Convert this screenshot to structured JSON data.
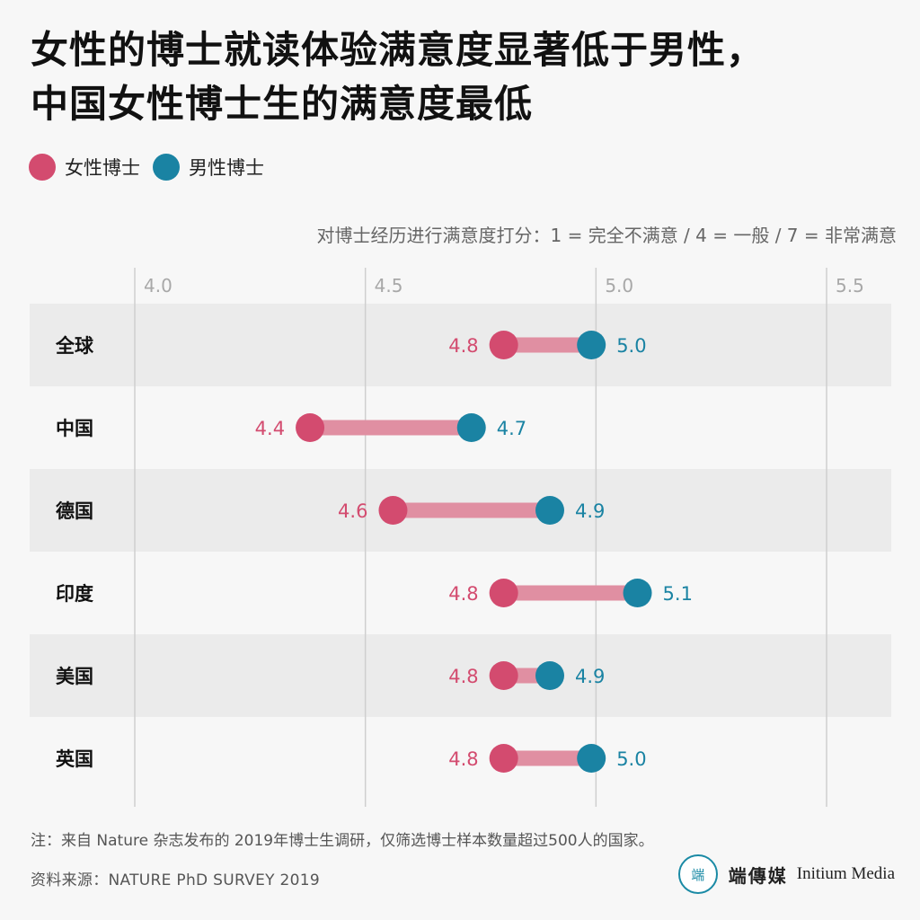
{
  "title_lines": [
    "女性的博士就读体验满意度显著低于男性，",
    "中国女性博士生的满意度最低"
  ],
  "legend": [
    {
      "label": "女性博士",
      "color": "#d34b6f"
    },
    {
      "label": "男性博士",
      "color": "#1a83a3"
    }
  ],
  "note": "注：来自 Nature 杂志发布的 2019年博士生调研，仅筛选博士样本数量超过500人的国家。",
  "source": "资料来源：NATURE PhD SURVEY 2019",
  "brand": {
    "logo_text": "端",
    "cn": "端傳媒",
    "en": "Initium Media"
  },
  "chart_data": {
    "type": "dumbbell",
    "subtitle": "对博士经历进行满意度打分：1 = 完全不满意 / 4 = 一般 / 7 = 非常满意",
    "xlim": [
      4.0,
      5.6
    ],
    "ticks": [
      4.0,
      4.5,
      5.0,
      5.5
    ],
    "tick_labels": [
      "4.0",
      "4.5",
      "5.0",
      "5.5"
    ],
    "categories": [
      "全球",
      "中国",
      "德国",
      "印度",
      "美国",
      "英国"
    ],
    "series": [
      {
        "name": "女性博士",
        "color": "#d34b6f",
        "values": [
          4.8,
          4.38,
          4.56,
          4.8,
          4.8,
          4.8
        ],
        "labels": [
          "4.8",
          "4.4",
          "4.6",
          "4.8",
          "4.8",
          "4.8"
        ]
      },
      {
        "name": "男性博士",
        "color": "#1a83a3",
        "values": [
          4.99,
          4.73,
          4.9,
          5.09,
          4.9,
          4.99
        ],
        "labels": [
          "5.0",
          "4.7",
          "4.9",
          "5.1",
          "4.9",
          "5.0"
        ]
      }
    ],
    "connector_color": "#e08fa2",
    "grid": true
  }
}
